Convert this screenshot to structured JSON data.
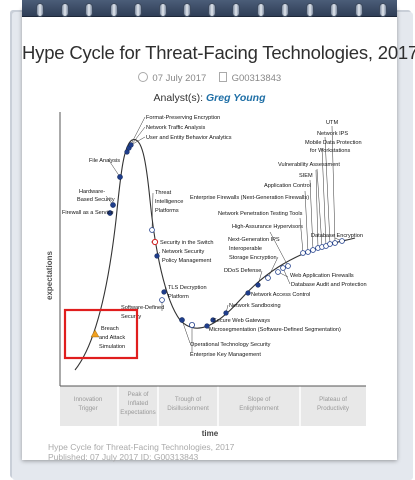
{
  "page": {
    "title": "Hype Cycle for Threat-Facing Technologies, 2017",
    "date": "07 July 2017",
    "doc_id": "G00313843",
    "analyst_label": "Analyst(s):",
    "analyst_name": "Greg Young",
    "footer_line1": "Hype Cycle for Threat-Facing Technologies, 2017",
    "footer_line2": "Published: 07 July 2017 ID: G00313843"
  },
  "chart": {
    "y_axis_label": "expectations",
    "x_axis_label": "time",
    "phases": [
      {
        "line1": "Innovation",
        "line2": "Trigger",
        "line3": ""
      },
      {
        "line1": "Peak of",
        "line2": "Inflated",
        "line3": "Expectations"
      },
      {
        "line1": "Trough of",
        "line2": "Disillusionment",
        "line3": ""
      },
      {
        "line1": "Slope of",
        "line2": "Enlightenment",
        "line3": ""
      },
      {
        "line1": "Plateau of",
        "line2": "Productivity",
        "line3": ""
      }
    ],
    "highlight_color": "#e01e1e",
    "dot_color": "#1f3d8a",
    "labels": {
      "format_preserving": "Format-Preserving Encryption",
      "network_traffic": "Network Traffic Analysis",
      "ueba": "User and Entity Behavior Analytics",
      "file_analysis": "File Analysis",
      "hw_security_1": "Hardware-",
      "hw_security_2": "Based Security",
      "firewall_service": "Firewall as a Service",
      "threat_intel_1": "Threat",
      "threat_intel_2": "Intelligence",
      "threat_intel_3": "Platforms",
      "security_switch": "Security in the Switch",
      "nspm_1": "Network Security",
      "nspm_2": "Policy Management",
      "tls_1": "TLS Decryption",
      "tls_2": "Platform",
      "sds_1": "Software-Defined",
      "sds_2": "Security",
      "bas_1": "Breach",
      "bas_2": "and Attack",
      "bas_3": "Simulation",
      "utm": "UTM",
      "network_ips": "Network IPS",
      "mobile_dp_1": "Mobile Data Protection",
      "mobile_dp_2": "for Workstations",
      "vuln_assess": "Vulnerability Assessment",
      "siem": "SIEM",
      "app_control": "Application Control",
      "enterprise_fw": "Enterprise Firewalls (Next-Generation Firewalls)",
      "db_encryption": "Database Encryption",
      "pen_test": "Network Penetration Testing Tools",
      "ha_hypervisors": "High-Assurance Hypervisors",
      "ngips_1": "Next-Generation IPS",
      "ngips_2": "Interoperable",
      "ngips_3": "Storage Encryption",
      "ddos": "DDoS Defense",
      "waf": "Web Application Firewalls",
      "dap": "Database Audit and Protection",
      "nac": "Network Access Control",
      "sandboxing": "Network Sandboxing",
      "swg": "Secure Web Gateways",
      "microseg": "Microsegmentation (Software-Defined Segmentation)",
      "ot_security": "Operational Technology Security",
      "ekm": "Enterprise Key Management"
    }
  }
}
